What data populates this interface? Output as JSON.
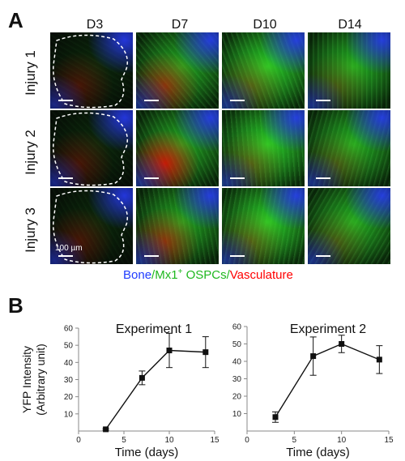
{
  "panel_a": {
    "letter": "A",
    "columns": [
      "D3",
      "D7",
      "D10",
      "D14"
    ],
    "rows": [
      "Injury 1",
      "Injury 2",
      "Injury 3"
    ],
    "scale_label": "100 µm",
    "legend": {
      "bone": "Bone",
      "slash1": "/",
      "mx1_prefix": "Mx1",
      "mx1_sup": "+",
      "mx1_suffix": " OSPCs",
      "slash2": "/",
      "vasculature": "Vasculature"
    },
    "colors": {
      "bone": "#2e3cff",
      "ospc": "#1fb81f",
      "vasculature": "#ff0000"
    }
  },
  "panel_b": {
    "letter": "B"
  },
  "chart_data": [
    {
      "type": "line",
      "title": "Experiment 1",
      "xlabel": "Time (days)",
      "ylabel": "YFP Intensity (Arbitrary unit)",
      "xlim": [
        0,
        15
      ],
      "ylim": [
        0,
        60
      ],
      "xticks": [
        0,
        5,
        10,
        15
      ],
      "yticks": [
        10,
        20,
        30,
        40,
        50,
        60
      ],
      "x": [
        3,
        7,
        10,
        14
      ],
      "y": [
        1,
        31,
        47,
        46
      ],
      "err": [
        0.5,
        4,
        10,
        9
      ]
    },
    {
      "type": "line",
      "title": "Experiment 2",
      "xlabel": "Time (days)",
      "ylabel": "",
      "xlim": [
        0,
        15
      ],
      "ylim": [
        0,
        60
      ],
      "xticks": [
        0,
        5,
        10,
        15
      ],
      "yticks": [
        10,
        20,
        30,
        40,
        50,
        60
      ],
      "x": [
        3,
        7,
        10,
        14
      ],
      "y": [
        8,
        43,
        50,
        41
      ],
      "err": [
        3,
        11,
        5,
        8
      ]
    }
  ]
}
